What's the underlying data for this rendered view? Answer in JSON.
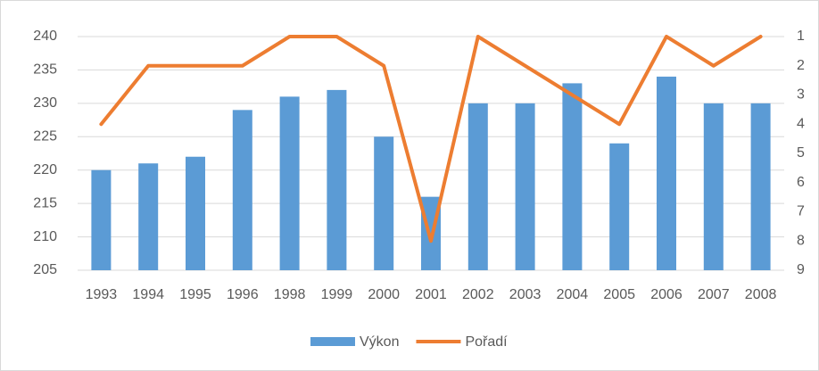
{
  "chart_data": {
    "type": "bar_line",
    "categories": [
      "1993",
      "1994",
      "1995",
      "1996",
      "1998",
      "1999",
      "2000",
      "2001",
      "2002",
      "2003",
      "2004",
      "2005",
      "2006",
      "2007",
      "2008"
    ],
    "series": [
      {
        "name": "Výkon",
        "type": "bar",
        "color": "#5b9bd5",
        "values": [
          220,
          221,
          222,
          229,
          231,
          232,
          225,
          216,
          230,
          230,
          233,
          224,
          234,
          230,
          230
        ]
      },
      {
        "name": "Pořadí",
        "type": "line",
        "axis": "y2",
        "color": "#ed7d31",
        "values": [
          4,
          2,
          2,
          2,
          1,
          1,
          2,
          8,
          1,
          2,
          3,
          4,
          1,
          2,
          1
        ]
      }
    ],
    "ylim": [
      205,
      240
    ],
    "yticks": [
      205,
      210,
      215,
      220,
      225,
      230,
      235,
      240
    ],
    "y2lim": [
      9,
      1
    ],
    "y2ticks": [
      1,
      2,
      3,
      4,
      5,
      6,
      7,
      8,
      9
    ],
    "grid": true,
    "legend": "bottom"
  }
}
